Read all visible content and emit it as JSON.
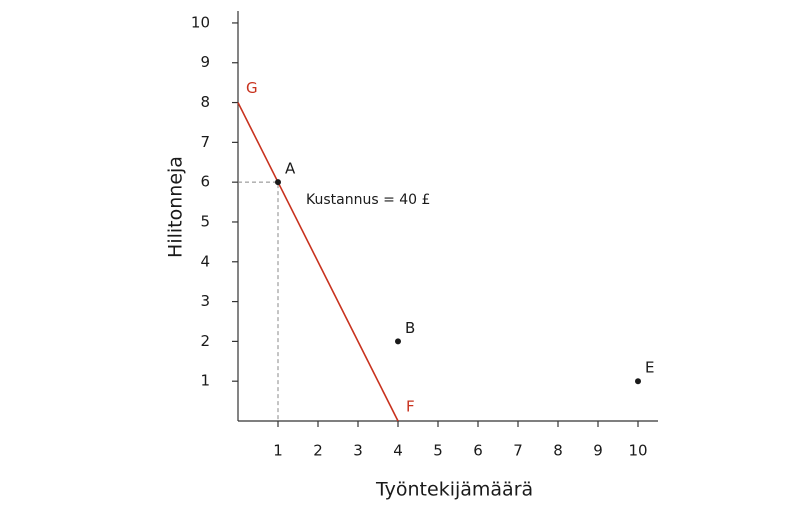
{
  "chart_data": {
    "type": "scatter",
    "x_label": "Työntekijämäärä",
    "y_label": "Hilitonneja",
    "xlim": [
      0,
      10.5
    ],
    "ylim": [
      0,
      10.3
    ],
    "xticks": [
      1,
      2,
      3,
      4,
      5,
      6,
      7,
      8,
      9,
      10
    ],
    "yticks": [
      1,
      2,
      3,
      4,
      5,
      6,
      7,
      8,
      9,
      10
    ],
    "points": {
      "labels": [
        "A",
        "B",
        "E"
      ],
      "x": [
        1,
        4,
        10
      ],
      "y": [
        6,
        2,
        1
      ],
      "color": "#1a1a1a"
    },
    "line": {
      "labels": [
        "G",
        "F"
      ],
      "x": [
        0,
        4
      ],
      "y": [
        8,
        0
      ],
      "color": "#c8321e"
    },
    "annotation": "Kustannus = 40 £"
  }
}
